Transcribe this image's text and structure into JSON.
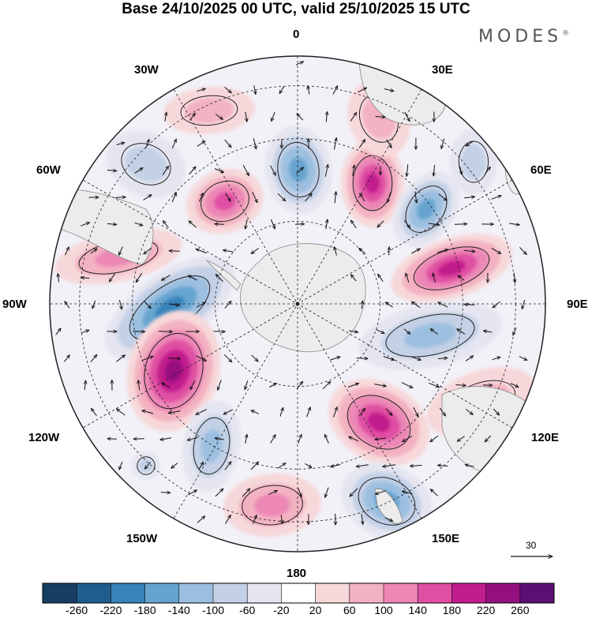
{
  "title": "Base 24/10/2025 00 UTC, valid 25/10/2025 15 UTC",
  "brand": "MODES",
  "brand_mark": "®",
  "meridian_labels": {
    "n0": "0",
    "e30": "30E",
    "e60": "60E",
    "e90": "90E",
    "e120": "120E",
    "e150": "150E",
    "s180": "180",
    "w150": "150W",
    "w120": "120W",
    "w90": "90W",
    "w60": "60W",
    "w30": "30W"
  },
  "vector_reference": "30",
  "colors": {
    "land": "#ececec",
    "coast": "#888888",
    "grid": "#222222",
    "vector": "#111111"
  },
  "colorbar": {
    "labels": [
      "-260",
      "-220",
      "-180",
      "-140",
      "-100",
      "-60",
      "-20",
      "20",
      "60",
      "100",
      "140",
      "180",
      "220",
      "260"
    ],
    "colors": [
      "#173e63",
      "#1f5d8f",
      "#3883bb",
      "#66a4cf",
      "#9cbfe0",
      "#c3d0e6",
      "#e4e5f0",
      "#ffffff",
      "#f7d8da",
      "#f3b2c1",
      "#ec87b6",
      "#e04fa3",
      "#c11d8c",
      "#95107f",
      "#5c0f73"
    ]
  }
}
